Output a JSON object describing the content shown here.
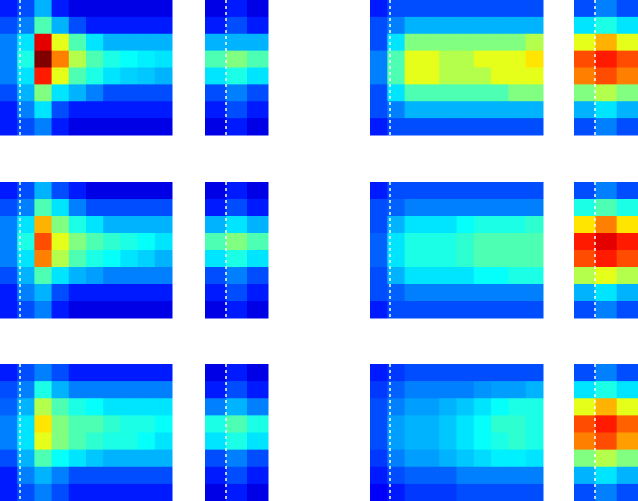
{
  "chart_data": [
    {
      "type": "heatmap",
      "colormap": "jet",
      "values": [
        [
          0.15,
          0.2,
          0.3,
          0.15,
          0.1,
          0.1,
          0.1,
          0.1,
          0.1,
          0.1
        ],
        [
          0.2,
          0.25,
          0.45,
          0.3,
          0.2,
          0.15,
          0.15,
          0.15,
          0.15,
          0.15
        ],
        [
          0.25,
          0.35,
          0.9,
          0.6,
          0.45,
          0.35,
          0.3,
          0.3,
          0.3,
          0.3
        ],
        [
          0.25,
          0.4,
          1.0,
          0.75,
          0.55,
          0.45,
          0.4,
          0.38,
          0.36,
          0.35
        ],
        [
          0.25,
          0.35,
          0.85,
          0.6,
          0.45,
          0.4,
          0.35,
          0.33,
          0.32,
          0.3
        ],
        [
          0.2,
          0.3,
          0.5,
          0.35,
          0.3,
          0.25,
          0.2,
          0.2,
          0.2,
          0.2
        ],
        [
          0.15,
          0.25,
          0.35,
          0.2,
          0.15,
          0.15,
          0.15,
          0.15,
          0.15,
          0.15
        ],
        [
          0.15,
          0.2,
          0.25,
          0.15,
          0.1,
          0.1,
          0.1,
          0.1,
          0.1,
          0.1
        ]
      ]
    },
    {
      "type": "heatmap",
      "colormap": "jet",
      "values": [
        [
          0.1,
          0.15,
          0.1
        ],
        [
          0.15,
          0.2,
          0.15
        ],
        [
          0.3,
          0.3,
          0.3
        ],
        [
          0.45,
          0.5,
          0.45
        ],
        [
          0.35,
          0.4,
          0.35
        ],
        [
          0.2,
          0.25,
          0.2
        ],
        [
          0.15,
          0.2,
          0.15
        ],
        [
          0.1,
          0.15,
          0.1
        ]
      ]
    },
    {
      "type": "heatmap",
      "colormap": "jet",
      "values": [
        [
          0.15,
          0.2,
          0.2,
          0.2,
          0.2,
          0.2,
          0.2,
          0.2,
          0.2,
          0.2
        ],
        [
          0.2,
          0.25,
          0.3,
          0.3,
          0.3,
          0.3,
          0.3,
          0.3,
          0.3,
          0.3
        ],
        [
          0.2,
          0.35,
          0.5,
          0.5,
          0.5,
          0.5,
          0.5,
          0.5,
          0.5,
          0.55
        ],
        [
          0.25,
          0.45,
          0.6,
          0.6,
          0.55,
          0.55,
          0.6,
          0.6,
          0.6,
          0.65
        ],
        [
          0.25,
          0.45,
          0.6,
          0.6,
          0.55,
          0.55,
          0.55,
          0.6,
          0.6,
          0.6
        ],
        [
          0.2,
          0.35,
          0.45,
          0.45,
          0.45,
          0.45,
          0.45,
          0.45,
          0.5,
          0.5
        ],
        [
          0.2,
          0.25,
          0.3,
          0.3,
          0.3,
          0.3,
          0.3,
          0.3,
          0.3,
          0.3
        ],
        [
          0.15,
          0.2,
          0.2,
          0.2,
          0.2,
          0.2,
          0.2,
          0.2,
          0.2,
          0.2
        ]
      ]
    },
    {
      "type": "heatmap",
      "colormap": "jet",
      "values": [
        [
          0.2,
          0.25,
          0.2
        ],
        [
          0.35,
          0.4,
          0.35
        ],
        [
          0.6,
          0.7,
          0.6
        ],
        [
          0.8,
          0.85,
          0.8
        ],
        [
          0.75,
          0.8,
          0.75
        ],
        [
          0.5,
          0.55,
          0.5
        ],
        [
          0.3,
          0.35,
          0.3
        ],
        [
          0.2,
          0.25,
          0.2
        ]
      ]
    },
    {
      "type": "heatmap",
      "colormap": "jet",
      "values": [
        [
          0.15,
          0.2,
          0.3,
          0.2,
          0.15,
          0.1,
          0.1,
          0.1,
          0.1,
          0.1
        ],
        [
          0.2,
          0.25,
          0.45,
          0.35,
          0.25,
          0.2,
          0.2,
          0.2,
          0.2,
          0.2
        ],
        [
          0.25,
          0.35,
          0.7,
          0.5,
          0.4,
          0.35,
          0.3,
          0.3,
          0.3,
          0.3
        ],
        [
          0.25,
          0.4,
          0.8,
          0.6,
          0.5,
          0.45,
          0.42,
          0.4,
          0.38,
          0.35
        ],
        [
          0.25,
          0.35,
          0.75,
          0.55,
          0.45,
          0.4,
          0.38,
          0.35,
          0.33,
          0.3
        ],
        [
          0.2,
          0.3,
          0.45,
          0.35,
          0.3,
          0.28,
          0.25,
          0.25,
          0.25,
          0.25
        ],
        [
          0.15,
          0.25,
          0.3,
          0.2,
          0.15,
          0.15,
          0.15,
          0.15,
          0.15,
          0.15
        ],
        [
          0.15,
          0.2,
          0.25,
          0.15,
          0.1,
          0.1,
          0.1,
          0.1,
          0.1,
          0.1
        ]
      ]
    },
    {
      "type": "heatmap",
      "colormap": "jet",
      "values": [
        [
          0.1,
          0.15,
          0.1
        ],
        [
          0.15,
          0.2,
          0.15
        ],
        [
          0.3,
          0.35,
          0.3
        ],
        [
          0.45,
          0.5,
          0.45
        ],
        [
          0.35,
          0.4,
          0.35
        ],
        [
          0.2,
          0.25,
          0.2
        ],
        [
          0.15,
          0.2,
          0.15
        ],
        [
          0.1,
          0.15,
          0.1
        ]
      ]
    },
    {
      "type": "heatmap",
      "colormap": "jet",
      "values": [
        [
          0.15,
          0.2,
          0.2,
          0.2,
          0.2,
          0.2,
          0.2,
          0.2,
          0.2,
          0.2
        ],
        [
          0.2,
          0.22,
          0.25,
          0.25,
          0.25,
          0.25,
          0.25,
          0.25,
          0.25,
          0.25
        ],
        [
          0.2,
          0.3,
          0.35,
          0.35,
          0.35,
          0.38,
          0.4,
          0.4,
          0.4,
          0.42
        ],
        [
          0.22,
          0.35,
          0.4,
          0.4,
          0.4,
          0.42,
          0.45,
          0.45,
          0.45,
          0.45
        ],
        [
          0.22,
          0.35,
          0.4,
          0.4,
          0.4,
          0.42,
          0.45,
          0.45,
          0.45,
          0.45
        ],
        [
          0.2,
          0.3,
          0.35,
          0.35,
          0.35,
          0.35,
          0.38,
          0.38,
          0.4,
          0.4
        ],
        [
          0.2,
          0.22,
          0.25,
          0.25,
          0.25,
          0.25,
          0.25,
          0.25,
          0.25,
          0.25
        ],
        [
          0.15,
          0.2,
          0.2,
          0.2,
          0.2,
          0.2,
          0.2,
          0.2,
          0.2,
          0.2
        ]
      ]
    },
    {
      "type": "heatmap",
      "colormap": "jet",
      "values": [
        [
          0.2,
          0.25,
          0.2
        ],
        [
          0.4,
          0.45,
          0.4
        ],
        [
          0.65,
          0.75,
          0.65
        ],
        [
          0.85,
          0.9,
          0.85
        ],
        [
          0.8,
          0.85,
          0.8
        ],
        [
          0.55,
          0.6,
          0.55
        ],
        [
          0.3,
          0.35,
          0.3
        ],
        [
          0.2,
          0.25,
          0.2
        ]
      ]
    },
    {
      "type": "heatmap",
      "colormap": "jet",
      "values": [
        [
          0.15,
          0.2,
          0.25,
          0.2,
          0.15,
          0.15,
          0.15,
          0.15,
          0.15,
          0.15
        ],
        [
          0.2,
          0.25,
          0.4,
          0.3,
          0.25,
          0.25,
          0.25,
          0.25,
          0.25,
          0.25
        ],
        [
          0.22,
          0.3,
          0.55,
          0.45,
          0.4,
          0.38,
          0.35,
          0.35,
          0.35,
          0.35
        ],
        [
          0.25,
          0.35,
          0.65,
          0.5,
          0.45,
          0.45,
          0.42,
          0.4,
          0.4,
          0.38
        ],
        [
          0.25,
          0.35,
          0.6,
          0.5,
          0.45,
          0.42,
          0.4,
          0.4,
          0.38,
          0.35
        ],
        [
          0.2,
          0.3,
          0.45,
          0.38,
          0.35,
          0.32,
          0.3,
          0.3,
          0.3,
          0.3
        ],
        [
          0.15,
          0.25,
          0.3,
          0.25,
          0.2,
          0.2,
          0.2,
          0.2,
          0.2,
          0.2
        ],
        [
          0.15,
          0.2,
          0.25,
          0.2,
          0.15,
          0.15,
          0.15,
          0.15,
          0.15,
          0.15
        ]
      ]
    },
    {
      "type": "heatmap",
      "colormap": "jet",
      "values": [
        [
          0.1,
          0.15,
          0.1
        ],
        [
          0.15,
          0.2,
          0.15
        ],
        [
          0.25,
          0.3,
          0.25
        ],
        [
          0.4,
          0.45,
          0.4
        ],
        [
          0.35,
          0.4,
          0.35
        ],
        [
          0.2,
          0.25,
          0.2
        ],
        [
          0.15,
          0.2,
          0.15
        ],
        [
          0.1,
          0.15,
          0.1
        ]
      ]
    },
    {
      "type": "heatmap",
      "colormap": "jet",
      "values": [
        [
          0.15,
          0.18,
          0.2,
          0.2,
          0.2,
          0.2,
          0.2,
          0.2,
          0.2,
          0.2
        ],
        [
          0.18,
          0.22,
          0.25,
          0.25,
          0.25,
          0.25,
          0.27,
          0.28,
          0.28,
          0.3
        ],
        [
          0.2,
          0.25,
          0.28,
          0.28,
          0.3,
          0.32,
          0.35,
          0.38,
          0.4,
          0.4
        ],
        [
          0.2,
          0.28,
          0.3,
          0.3,
          0.32,
          0.35,
          0.38,
          0.42,
          0.42,
          0.4
        ],
        [
          0.2,
          0.28,
          0.3,
          0.3,
          0.32,
          0.35,
          0.38,
          0.4,
          0.42,
          0.4
        ],
        [
          0.18,
          0.25,
          0.28,
          0.28,
          0.3,
          0.32,
          0.34,
          0.36,
          0.36,
          0.35
        ],
        [
          0.15,
          0.2,
          0.22,
          0.22,
          0.22,
          0.25,
          0.25,
          0.25,
          0.25,
          0.25
        ],
        [
          0.12,
          0.15,
          0.18,
          0.18,
          0.18,
          0.2,
          0.2,
          0.2,
          0.2,
          0.2
        ]
      ]
    },
    {
      "type": "heatmap",
      "colormap": "jet",
      "values": [
        [
          0.2,
          0.25,
          0.2
        ],
        [
          0.35,
          0.4,
          0.35
        ],
        [
          0.6,
          0.7,
          0.6
        ],
        [
          0.8,
          0.85,
          0.78
        ],
        [
          0.75,
          0.8,
          0.72
        ],
        [
          0.5,
          0.55,
          0.5
        ],
        [
          0.3,
          0.35,
          0.3
        ],
        [
          0.2,
          0.25,
          0.2
        ]
      ]
    }
  ]
}
